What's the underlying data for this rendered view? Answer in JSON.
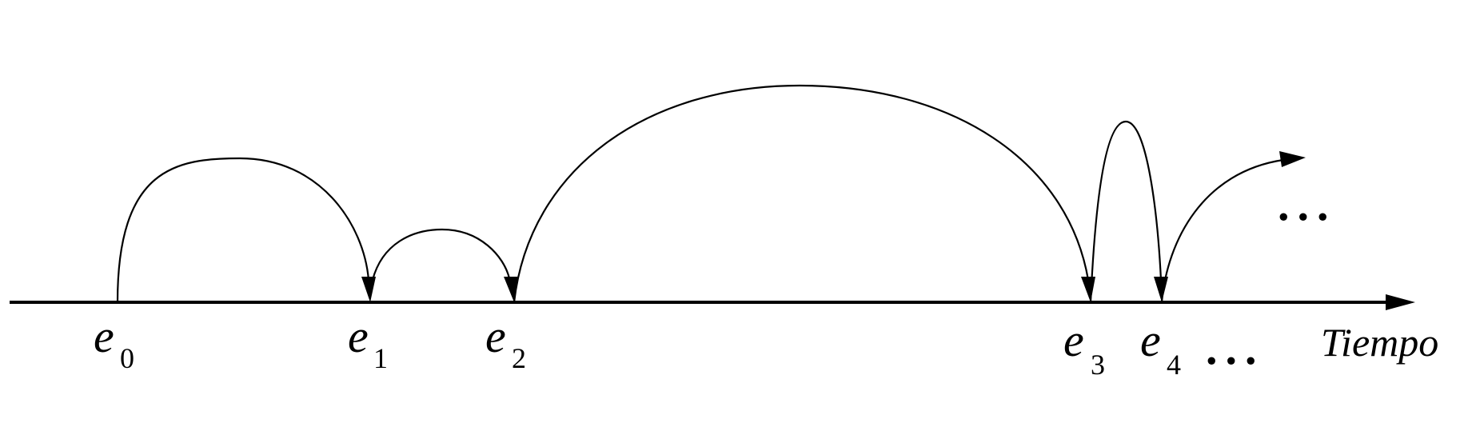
{
  "diagram": {
    "axis_label": "Tiempo",
    "events": [
      {
        "symbol": "e",
        "index": "0"
      },
      {
        "symbol": "e",
        "index": "1"
      },
      {
        "symbol": "e",
        "index": "2"
      },
      {
        "symbol": "e",
        "index": "3"
      },
      {
        "symbol": "e",
        "index": "4"
      }
    ],
    "axis_ellipsis": "...",
    "arc_ellipsis": "...",
    "transitions": [
      {
        "from": "e0",
        "to": "e1"
      },
      {
        "from": "e1",
        "to": "e2"
      },
      {
        "from": "e2",
        "to": "e3"
      },
      {
        "from": "e3",
        "to": "e4"
      },
      {
        "from": "e4",
        "to": "continuation"
      }
    ]
  }
}
